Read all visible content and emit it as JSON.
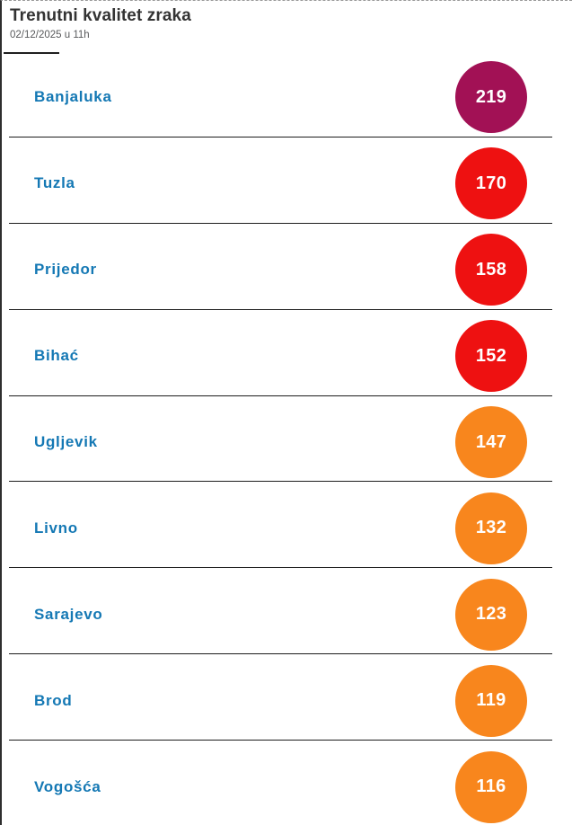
{
  "header": {
    "title": "Trenutni kvalitet zraka",
    "date": "02/12/2025 u 11h"
  },
  "rows": [
    {
      "city": "Banjaluka",
      "value": "219",
      "color": "#a21155"
    },
    {
      "city": "Tuzla",
      "value": "170",
      "color": "#ee1111"
    },
    {
      "city": "Prijedor",
      "value": "158",
      "color": "#ee1111"
    },
    {
      "city": "Bihać",
      "value": "152",
      "color": "#ee1111"
    },
    {
      "city": "Ugljevik",
      "value": "147",
      "color": "#f8861d"
    },
    {
      "city": "Livno",
      "value": "132",
      "color": "#f8861d"
    },
    {
      "city": "Sarajevo",
      "value": "123",
      "color": "#f8861d"
    },
    {
      "city": "Brod",
      "value": "119",
      "color": "#f8861d"
    },
    {
      "city": "Vogošća",
      "value": "116",
      "color": "#f8861d"
    }
  ],
  "colors": {
    "very_unhealthy": "#a21155",
    "unhealthy": "#ee1111",
    "unhealthy_for_sensitive": "#f8861d",
    "city_link": "#1478b4",
    "separator": "#1d1d1d",
    "title_text": "#333333",
    "date_text": "#58595b"
  }
}
